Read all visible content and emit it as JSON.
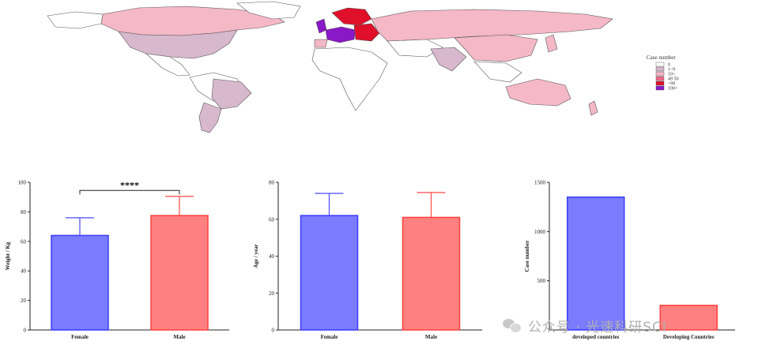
{
  "map": {
    "legend_title": "Case number",
    "legend": [
      {
        "label": "0",
        "color": "#ffffff"
      },
      {
        "label": "1~9",
        "color": "#d7b8cc"
      },
      {
        "label": "10~",
        "color": "#f5b8c6"
      },
      {
        "label": "49 50",
        "color": "#f06a8a"
      },
      {
        "label": "~99",
        "color": "#e0102a"
      },
      {
        "label": "100+",
        "color": "#8a18c8"
      }
    ]
  },
  "chart_data": [
    {
      "type": "bar",
      "categories": [
        "Female",
        "Male"
      ],
      "values": [
        64,
        77.5
      ],
      "errors": [
        12,
        13
      ],
      "colors": [
        "#7b7bff",
        "#ff8080"
      ],
      "ylabel": "Weight / Kg",
      "ylim": [
        0,
        100
      ],
      "yticks": [
        0,
        20,
        40,
        60,
        80,
        100
      ],
      "significance": "****"
    },
    {
      "type": "bar",
      "categories": [
        "Female",
        "Male"
      ],
      "values": [
        62,
        61
      ],
      "errors": [
        12,
        13.5
      ],
      "colors": [
        "#7b7bff",
        "#ff8080"
      ],
      "ylabel": "Age / year",
      "ylim": [
        0,
        80
      ],
      "yticks": [
        0,
        20,
        40,
        60,
        80
      ]
    },
    {
      "type": "bar",
      "categories": [
        "developed countries",
        "Developing Countries"
      ],
      "values": [
        1350,
        250
      ],
      "colors": [
        "#7b7bff",
        "#ff8080"
      ],
      "ylabel": "Case number",
      "ylim": [
        0,
        1500
      ],
      "yticks": [
        500,
        1000,
        1500
      ]
    }
  ],
  "watermark": "公众号 · 光速科研SCI"
}
